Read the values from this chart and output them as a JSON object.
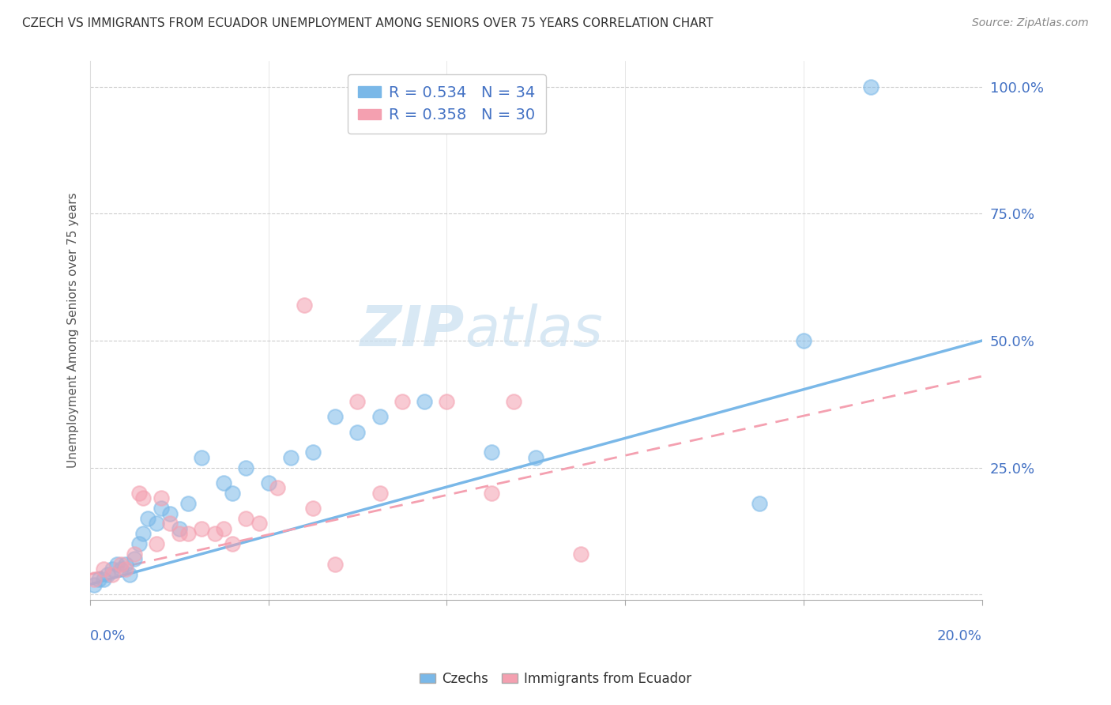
{
  "title": "CZECH VS IMMIGRANTS FROM ECUADOR UNEMPLOYMENT AMONG SENIORS OVER 75 YEARS CORRELATION CHART",
  "source": "Source: ZipAtlas.com",
  "ylabel": "Unemployment Among Seniors over 75 years",
  "ytick_labels": [
    "",
    "25.0%",
    "50.0%",
    "75.0%",
    "100.0%"
  ],
  "ytick_vals": [
    0,
    0.25,
    0.5,
    0.75,
    1.0
  ],
  "xmin": 0.0,
  "xmax": 0.2,
  "ymin": -0.01,
  "ymax": 1.05,
  "legend_blue_R": "R = 0.534",
  "legend_blue_N": "N = 34",
  "legend_pink_R": "R = 0.358",
  "legend_pink_N": "N = 30",
  "blue_color": "#7ab8e8",
  "pink_color": "#f4a0b0",
  "watermark_zip": "ZIP",
  "watermark_atlas": "atlas",
  "blue_scatter_x": [
    0.001,
    0.002,
    0.003,
    0.004,
    0.005,
    0.006,
    0.007,
    0.008,
    0.009,
    0.01,
    0.011,
    0.012,
    0.013,
    0.015,
    0.016,
    0.018,
    0.02,
    0.022,
    0.025,
    0.03,
    0.032,
    0.035,
    0.04,
    0.045,
    0.05,
    0.055,
    0.06,
    0.065,
    0.075,
    0.09,
    0.1,
    0.15,
    0.16,
    0.175
  ],
  "blue_scatter_y": [
    0.02,
    0.03,
    0.03,
    0.04,
    0.05,
    0.06,
    0.05,
    0.06,
    0.04,
    0.07,
    0.1,
    0.12,
    0.15,
    0.14,
    0.17,
    0.16,
    0.13,
    0.18,
    0.27,
    0.22,
    0.2,
    0.25,
    0.22,
    0.27,
    0.28,
    0.35,
    0.32,
    0.35,
    0.38,
    0.28,
    0.27,
    0.18,
    0.5,
    1.0
  ],
  "pink_scatter_x": [
    0.001,
    0.003,
    0.005,
    0.007,
    0.008,
    0.01,
    0.011,
    0.012,
    0.015,
    0.016,
    0.018,
    0.02,
    0.022,
    0.025,
    0.028,
    0.03,
    0.032,
    0.035,
    0.038,
    0.042,
    0.048,
    0.05,
    0.055,
    0.06,
    0.065,
    0.07,
    0.08,
    0.09,
    0.095,
    0.11
  ],
  "pink_scatter_y": [
    0.03,
    0.05,
    0.04,
    0.06,
    0.05,
    0.08,
    0.2,
    0.19,
    0.1,
    0.19,
    0.14,
    0.12,
    0.12,
    0.13,
    0.12,
    0.13,
    0.1,
    0.15,
    0.14,
    0.21,
    0.57,
    0.17,
    0.06,
    0.38,
    0.2,
    0.38,
    0.38,
    0.2,
    0.38,
    0.08
  ],
  "blue_line_x": [
    0.0,
    0.2
  ],
  "blue_line_y": [
    0.02,
    0.5
  ],
  "pink_line_x": [
    0.0,
    0.2
  ],
  "pink_line_y": [
    0.04,
    0.43
  ]
}
